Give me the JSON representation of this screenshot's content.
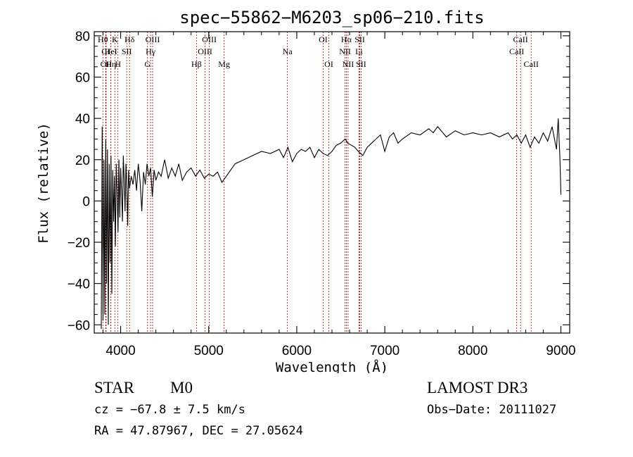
{
  "chart_data": {
    "type": "line",
    "title": "spec−55862−M6203_sp06−210.fits",
    "xlabel": "Wavelength (Å)",
    "ylabel": "Flux (relative)",
    "xlim": [
      3700,
      9100
    ],
    "ylim": [
      -64,
      82
    ],
    "xticks": [
      4000,
      5000,
      6000,
      7000,
      8000,
      9000
    ],
    "yticks": [
      -60,
      -40,
      -20,
      0,
      20,
      40,
      60,
      80
    ],
    "ytick_labels": [
      "−60",
      "−40",
      "−20",
      "0",
      "20",
      "40",
      "60",
      "80"
    ],
    "series": [
      {
        "name": "flux",
        "x": [
          3780,
          3790,
          3800,
          3810,
          3820,
          3830,
          3840,
          3850,
          3860,
          3870,
          3880,
          3890,
          3900,
          3910,
          3920,
          3930,
          3940,
          3950,
          3960,
          3970,
          3980,
          3990,
          4000,
          4010,
          4020,
          4030,
          4040,
          4050,
          4060,
          4070,
          4080,
          4090,
          4100,
          4120,
          4140,
          4160,
          4180,
          4200,
          4220,
          4240,
          4260,
          4280,
          4300,
          4320,
          4340,
          4360,
          4380,
          4400,
          4430,
          4460,
          4500,
          4540,
          4580,
          4620,
          4660,
          4700,
          4750,
          4800,
          4850,
          4900,
          4950,
          5000,
          5050,
          5100,
          5150,
          5200,
          5250,
          5300,
          5400,
          5500,
          5600,
          5700,
          5800,
          5850,
          5900,
          5950,
          6000,
          6050,
          6100,
          6150,
          6200,
          6250,
          6300,
          6350,
          6400,
          6450,
          6500,
          6550,
          6580,
          6620,
          6660,
          6700,
          6750,
          6800,
          6850,
          6900,
          6950,
          7000,
          7050,
          7100,
          7150,
          7200,
          7300,
          7400,
          7500,
          7550,
          7600,
          7700,
          7800,
          7900,
          8000,
          8100,
          8200,
          8300,
          8400,
          8450,
          8500,
          8550,
          8600,
          8650,
          8700,
          8750,
          8800,
          8850,
          8900,
          8950,
          8970,
          8990,
          9000
        ],
        "y": [
          -62,
          36,
          -58,
          20,
          -55,
          30,
          -40,
          25,
          -60,
          18,
          -30,
          22,
          -45,
          15,
          -10,
          12,
          -22,
          18,
          5,
          -15,
          20,
          -8,
          16,
          5,
          -10,
          22,
          10,
          -5,
          18,
          8,
          -12,
          15,
          6,
          12,
          8,
          15,
          5,
          18,
          10,
          -5,
          14,
          8,
          18,
          12,
          16,
          2,
          15,
          10,
          14,
          12,
          20,
          11,
          16,
          12,
          18,
          10,
          14,
          16,
          12,
          15,
          11,
          13,
          12,
          14,
          9,
          12,
          15,
          18,
          20,
          22,
          24,
          23,
          25,
          21,
          26,
          19,
          23,
          25,
          24,
          26,
          21,
          25,
          23,
          22,
          24,
          27,
          28,
          30,
          28,
          27,
          26,
          24,
          22,
          26,
          28,
          30,
          32,
          24,
          31,
          33,
          28,
          30,
          33,
          32,
          35,
          33,
          36,
          31,
          34,
          32,
          33,
          32,
          33,
          31,
          33,
          30,
          32,
          28,
          32,
          26,
          31,
          28,
          33,
          29,
          36,
          25,
          40,
          20,
          3
        ]
      }
    ],
    "lines": [
      {
        "label": "Hθ",
        "x": 3798,
        "row": 0
      },
      {
        "label": "CI",
        "x": 3830,
        "row": 1
      },
      {
        "label": "OII",
        "x": 3835,
        "row": 2
      },
      {
        "label": "K",
        "x": 3934,
        "row": 0
      },
      {
        "label": "HeI",
        "x": 3889,
        "row": 1
      },
      {
        "label": "Hη",
        "x": 3889,
        "row": 2
      },
      {
        "label": "H",
        "x": 3969,
        "row": 2
      },
      {
        "label": "Hδ",
        "x": 4101,
        "row": 0
      },
      {
        "label": "SII",
        "x": 4069,
        "row": 1
      },
      {
        "label": "OIII",
        "x": 4363,
        "row": 0
      },
      {
        "label": "Hγ",
        "x": 4340,
        "row": 1
      },
      {
        "label": "G",
        "x": 4305,
        "row": 2
      },
      {
        "label": "OIII",
        "x": 5007,
        "row": 0
      },
      {
        "label": "OIII",
        "x": 4959,
        "row": 1
      },
      {
        "label": "Hβ",
        "x": 4861,
        "row": 2
      },
      {
        "label": "Mg",
        "x": 5175,
        "row": 2
      },
      {
        "label": "Na",
        "x": 5894,
        "row": 1
      },
      {
        "label": "OI",
        "x": 6300,
        "row": 0
      },
      {
        "label": "OI",
        "x": 6364,
        "row": 2
      },
      {
        "label": "Hα",
        "x": 6563,
        "row": 0
      },
      {
        "label": "NII",
        "x": 6548,
        "row": 1
      },
      {
        "label": "NII",
        "x": 6583,
        "row": 2
      },
      {
        "label": "SII",
        "x": 6716,
        "row": 0
      },
      {
        "label": "Li",
        "x": 6707,
        "row": 1
      },
      {
        "label": "SII",
        "x": 6731,
        "row": 2
      },
      {
        "label": "CaII",
        "x": 8498,
        "row": 1
      },
      {
        "label": "CaII",
        "x": 8542,
        "row": 0
      },
      {
        "label": "CaII",
        "x": 8662,
        "row": 2
      }
    ]
  },
  "info": {
    "class": "STAR",
    "subclass": "M0",
    "survey": "LAMOST DR3",
    "cz": "cz = −67.8 ± 7.5 km/s",
    "obs_date": "Obs−Date: 20111027",
    "radec": "RA =  47.87967, DEC =  27.05624"
  },
  "colors": {
    "axis": "#000000",
    "line_marker": "#aa0000",
    "spectrum": "#000000"
  }
}
